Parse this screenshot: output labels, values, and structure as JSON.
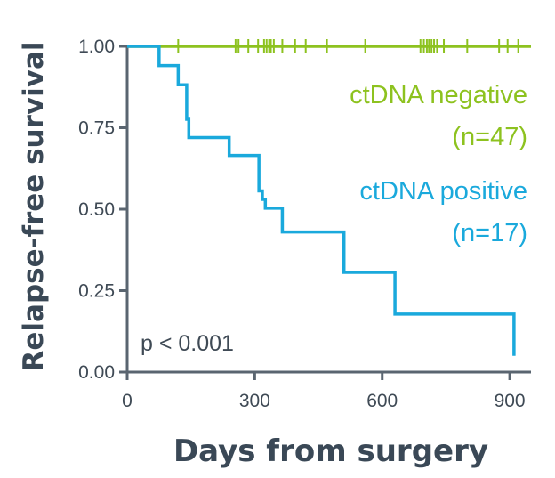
{
  "chart_data": {
    "type": "line",
    "subtype": "kaplan-meier step",
    "xlabel": "Days from surgery",
    "ylabel": "Relapse-free survival",
    "xlim": [
      0,
      950
    ],
    "ylim": [
      0,
      1
    ],
    "x_ticks": [
      "0",
      "300",
      "600",
      "900"
    ],
    "x_tick_values": [
      0,
      300,
      600,
      900
    ],
    "y_ticks": [
      "0.00",
      "0.25",
      "0.50",
      "0.75",
      "1.00"
    ],
    "y_tick_values": [
      0,
      0.25,
      0.5,
      0.75,
      1.0
    ],
    "grid": false,
    "annotation": "p < 0.001",
    "series": [
      {
        "name": "ctDNA negative",
        "label_line1": "ctDNA negative",
        "label_line2": "(n=47)",
        "color": "#8dc21f",
        "steps": [
          [
            0,
            1.0
          ],
          [
            950,
            1.0
          ]
        ],
        "censor_times": [
          120,
          255,
          262,
          285,
          308,
          322,
          328,
          334,
          338,
          345,
          365,
          395,
          420,
          470,
          560,
          690,
          698,
          705,
          710,
          716,
          722,
          729,
          745,
          800,
          875,
          895,
          920
        ]
      },
      {
        "name": "ctDNA positive",
        "label_line1": "ctDNA positive",
        "label_line2": "(n=17)",
        "color": "#1aa9dc",
        "steps": [
          [
            0,
            1.0
          ],
          [
            75,
            0.941
          ],
          [
            120,
            0.882
          ],
          [
            140,
            0.776
          ],
          [
            145,
            0.72
          ],
          [
            240,
            0.665
          ],
          [
            310,
            0.556
          ],
          [
            318,
            0.53
          ],
          [
            325,
            0.503
          ],
          [
            365,
            0.43
          ],
          [
            510,
            0.306
          ],
          [
            630,
            0.178
          ],
          [
            910,
            0.178
          ],
          [
            910,
            0.05
          ]
        ],
        "censor_times": []
      }
    ]
  }
}
